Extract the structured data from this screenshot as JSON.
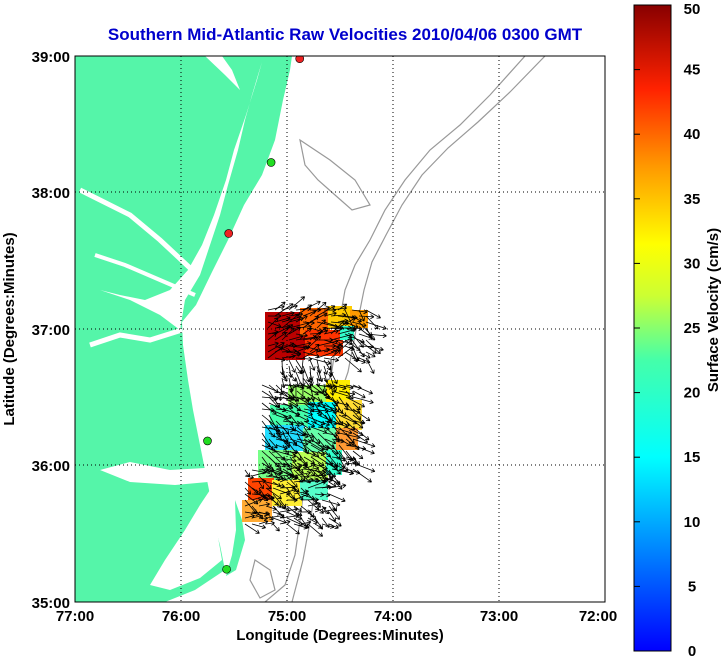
{
  "title": "Southern Mid-Atlantic Raw Velocities 2010/04/06 0300 GMT",
  "xlabel": "Longitude (Degrees:Minutes)",
  "ylabel": "Latitude (Degrees:Minutes)",
  "x_ticks": [
    "77:00",
    "76:00",
    "75:00",
    "74:00",
    "73:00",
    "72:00"
  ],
  "y_ticks": [
    "39:00",
    "38:00",
    "37:00",
    "36:00",
    "35:00"
  ],
  "colorbar": {
    "label": "Surface Velocity (cm/s)",
    "ticks": [
      "0",
      "5",
      "10",
      "15",
      "20",
      "25",
      "30",
      "35",
      "40",
      "45",
      "50"
    ],
    "min": 0,
    "max": 50
  },
  "colors": {
    "land": "#55f5a9",
    "water": "#ffffff",
    "title": "#0000cc",
    "station_green": "#22dd22",
    "station_red": "#ee2222",
    "bathymetry": "#999999"
  },
  "map_extent": {
    "lon": [
      -77,
      -72
    ],
    "lat": [
      35,
      39
    ]
  },
  "stations": [
    {
      "lon": -74.88,
      "lat": 38.98,
      "status": "red"
    },
    {
      "lon": -75.15,
      "lat": 38.22,
      "status": "green"
    },
    {
      "lon": -75.55,
      "lat": 37.7,
      "status": "red"
    },
    {
      "lon": -75.75,
      "lat": 36.18,
      "status": "green"
    },
    {
      "lon": -75.57,
      "lat": 35.24,
      "status": "green"
    }
  ]
}
